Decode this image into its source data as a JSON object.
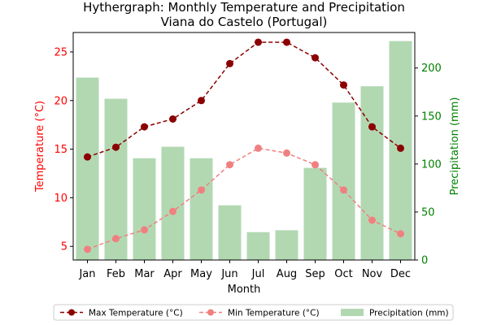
{
  "chart_data": {
    "type": "bar+line",
    "title": "Hythergraph: Monthly Temperature and Precipitation",
    "subtitle": "Viana do Castelo (Portugal)",
    "xlabel": "Month",
    "ylabel_left": "Temperature (°C)",
    "ylabel_right": "Precipitation (mm)",
    "categories": [
      "Jan",
      "Feb",
      "Mar",
      "Apr",
      "May",
      "Jun",
      "Jul",
      "Aug",
      "Sep",
      "Oct",
      "Nov",
      "Dec"
    ],
    "y_left_ticks": [
      5,
      10,
      15,
      20,
      25
    ],
    "y_left_range": [
      3.6,
      27.0
    ],
    "y_right_ticks": [
      0,
      50,
      100,
      150,
      200
    ],
    "y_right_range": [
      0,
      237
    ],
    "series": [
      {
        "name": "Max Temperature (°C)",
        "kind": "line",
        "axis": "left",
        "color": "#8b0000",
        "style": "dashed",
        "marker": "circle",
        "values": [
          14.2,
          15.2,
          17.3,
          18.1,
          20.0,
          23.8,
          26.0,
          26.0,
          24.4,
          21.6,
          17.3,
          15.1
        ]
      },
      {
        "name": "Min Temperature (°C)",
        "kind": "line",
        "axis": "left",
        "color": "#f08080",
        "style": "dashed",
        "marker": "circle",
        "values": [
          4.7,
          5.8,
          6.7,
          8.6,
          10.8,
          13.4,
          15.1,
          14.6,
          13.4,
          10.8,
          7.7,
          6.3
        ]
      },
      {
        "name": "Precipitation (mm)",
        "kind": "bar",
        "axis": "right",
        "color": "#b2d8b2",
        "values": [
          190,
          168,
          106,
          118,
          106,
          57,
          29,
          31,
          96,
          164,
          181,
          228
        ]
      }
    ],
    "legend_position": "bottom-center",
    "grid": false,
    "colors": {
      "left_axis": "#ff0000",
      "right_axis": "#008000"
    }
  }
}
